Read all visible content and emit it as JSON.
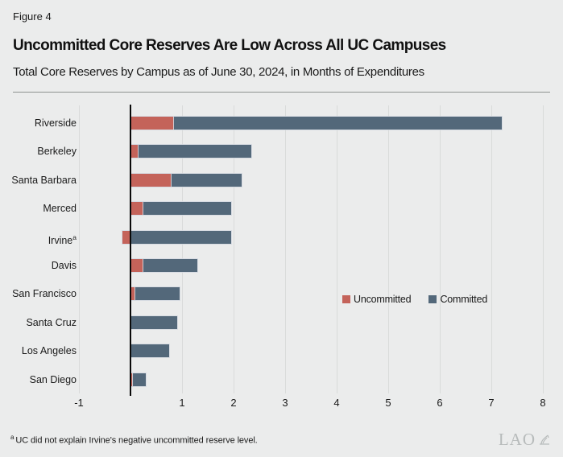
{
  "figure_label": "Figure 4",
  "title": "Uncommitted Core Reserves Are Low Across All UC Campuses",
  "subtitle": "Total Core Reserves by Campus as of June 30, 2024, in Months of Expenditures",
  "footnote": {
    "marker": "a",
    "text": "UC did not explain Irvine's negative uncommitted reserve level."
  },
  "logo_text": "LAO",
  "colors": {
    "uncommitted": "#c4635a",
    "committed": "#53687a",
    "background": "#ebecec",
    "gridline": "#d9dbda",
    "axis": "#0a0a0a"
  },
  "chart_data": {
    "type": "bar",
    "orientation": "horizontal",
    "stacked": true,
    "title": "Uncommitted Core Reserves Are Low Across All UC Campuses",
    "subtitle": "Total Core Reserves by Campus as of June 30, 2024, in Months of Expenditures",
    "unit": "months of expenditures",
    "categories": [
      "Riverside",
      "Berkeley",
      "Santa Barbara",
      "Merced",
      "Irvine",
      "Davis",
      "San Francisco",
      "Santa Cruz",
      "Los Angeles",
      "San Diego"
    ],
    "category_sups": [
      "",
      "",
      "",
      "",
      "a",
      "",
      "",
      "",
      "",
      ""
    ],
    "series": [
      {
        "name": "Uncommitted",
        "values": [
          0.85,
          0.15,
          0.8,
          0.25,
          -0.15,
          0.25,
          0.1,
          0,
          0,
          0.05
        ]
      },
      {
        "name": "Committed",
        "values": [
          6.35,
          2.2,
          1.35,
          1.7,
          1.95,
          1.05,
          0.85,
          0.9,
          0.75,
          0.25
        ]
      }
    ],
    "totals": [
      7.2,
      2.35,
      2.15,
      1.95,
      1.95,
      1.3,
      0.95,
      0.9,
      0.75,
      0.3
    ],
    "xlabel": "",
    "ylabel": "",
    "xlim": [
      -1,
      8
    ],
    "xticks": [
      -1,
      1,
      2,
      3,
      4,
      5,
      6,
      7,
      8
    ],
    "grid": true,
    "legend_position": "center-right"
  }
}
